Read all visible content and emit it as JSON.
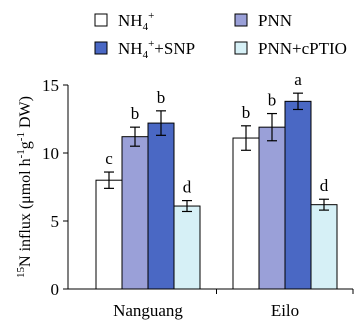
{
  "chart_data": {
    "type": "bar",
    "categories": [
      "Nanguang",
      "Eilo"
    ],
    "series": [
      {
        "name": "NH4+",
        "label_main": "NH",
        "label_sub": "4",
        "label_sup": "+",
        "label_rest": "",
        "color": "#ffffff",
        "values": [
          8.0,
          11.1
        ],
        "errors": [
          0.6,
          0.9
        ],
        "letters": [
          "c",
          "b"
        ]
      },
      {
        "name": "NH4++SNP",
        "label_main": "NH",
        "label_sub": "4",
        "label_sup": "+",
        "label_rest": "+SNP",
        "color": "#4a68c4",
        "values": [
          12.2,
          13.8
        ],
        "errors": [
          0.9,
          0.6
        ],
        "letters": [
          "b",
          "a"
        ]
      },
      {
        "name": "PNN",
        "label_main": "PNN",
        "label_sub": "",
        "label_sup": "",
        "label_rest": "",
        "color": "#9aa0d8",
        "values": [
          11.2,
          11.9
        ],
        "errors": [
          0.7,
          1.0
        ],
        "letters": [
          "b",
          "b"
        ]
      },
      {
        "name": "PNN+cPTIO",
        "label_main": "PNN+cPTIO",
        "label_sub": "",
        "label_sup": "",
        "label_rest": "",
        "color": "#d6f0f6",
        "values": [
          6.1,
          6.2
        ],
        "errors": [
          0.4,
          0.4
        ],
        "letters": [
          "d",
          "d"
        ]
      }
    ],
    "bar_order": [
      0,
      2,
      1,
      3
    ],
    "ylabel": "15N influx (μmol h-1g-1 DW)",
    "ylabel_parts": {
      "sup1": "15",
      "a": "N influx (μmol h",
      "sup2": "-1",
      "b": "g",
      "sup3": "-1",
      "c": " DW)"
    },
    "yticks": [
      0,
      5,
      10,
      15
    ],
    "ylim": [
      0,
      15
    ],
    "legend_position": "top",
    "grid": false
  }
}
